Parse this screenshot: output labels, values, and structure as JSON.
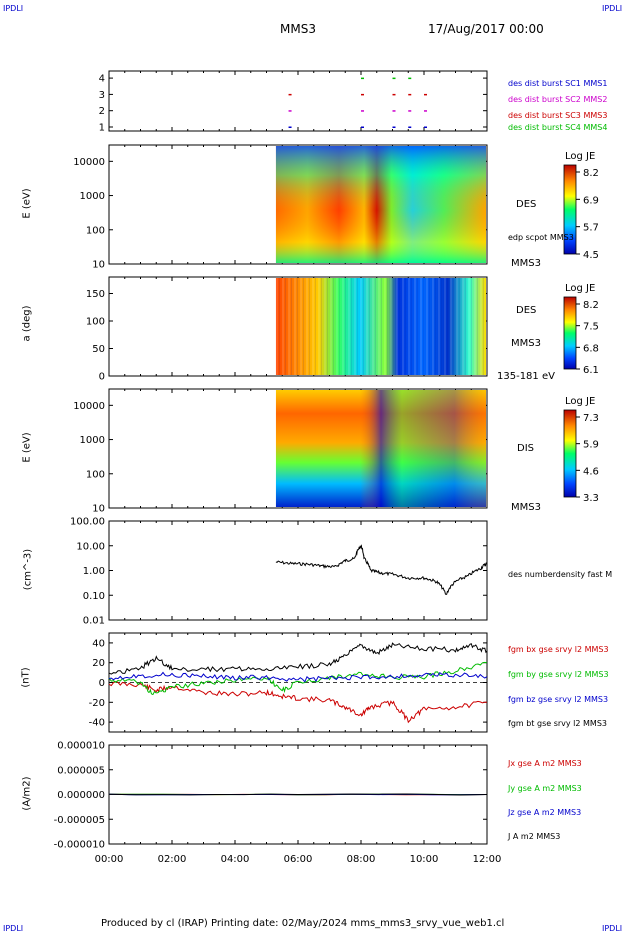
{
  "corners": {
    "tl": "IPDLI",
    "tr": "IPDLI",
    "bl": "IPDLI",
    "br": "IPDLI"
  },
  "header": {
    "spacecraft": "MMS3",
    "date": "17/Aug/2017 00:00"
  },
  "footer": "Produced by cl (IRAP)   Printing date: 02/May/2024   mms_mms3_srvy_vue_web1.cl",
  "x_ticks": [
    "00:00",
    "02:00",
    "04:00",
    "06:00",
    "08:00",
    "10:00",
    "12:00"
  ],
  "colors": {
    "mms1": "#0000cc",
    "mms2": "#cc00cc",
    "mms3": "#cc0000",
    "mms4": "#00bb00"
  },
  "chart_data": [
    {
      "type": "scatter",
      "id": "burst",
      "yticks": [
        "4",
        "3",
        "2",
        "1"
      ],
      "legend": [
        "des dist burst SC1 MMS1",
        "des dist burst SC2 MMS2",
        "des dist burst SC3 MMS3",
        "des dist burst SC4 MMS4"
      ],
      "series": [
        {
          "name": "des dist burst SC1 MMS1",
          "y": 1,
          "x": [
            5.7,
            8.0,
            9.0,
            9.5,
            10.0
          ]
        },
        {
          "name": "des dist burst SC2 MMS2",
          "y": 2,
          "x": [
            5.7,
            8.0,
            9.0,
            9.5,
            10.0
          ]
        },
        {
          "name": "des dist burst SC3 MMS3",
          "y": 3,
          "x": [
            5.7,
            8.0,
            9.0,
            9.5,
            10.0
          ]
        },
        {
          "name": "des dist burst SC4 MMS4",
          "y": 4,
          "x": [
            8.0,
            9.0,
            9.5
          ]
        }
      ],
      "xlim": [
        0,
        12
      ]
    },
    {
      "type": "heatmap",
      "id": "des-energy",
      "ylabel": "E (eV)",
      "yticks": [
        "10000",
        "1000",
        "100",
        "10"
      ],
      "label": "DES",
      "sublabel": "MMS3",
      "overlay": "edp scpot MMS3",
      "colorbar": {
        "title": "Log JE",
        "ticks": [
          "8.2",
          "6.9",
          "5.7",
          "4.5"
        ]
      },
      "xlim": [
        0,
        12
      ],
      "data_start": 5.3
    },
    {
      "type": "heatmap",
      "id": "des-pitch",
      "ylabel": "a (deg)",
      "yticks": [
        "150",
        "100",
        "50",
        "0"
      ],
      "label": "DES",
      "sublabel": "MMS3",
      "energy": "135-181 eV",
      "colorbar": {
        "title": "Log JE",
        "ticks": [
          "8.2",
          "7.5",
          "6.8",
          "6.1"
        ]
      },
      "xlim": [
        0,
        12
      ],
      "data_start": 5.3
    },
    {
      "type": "heatmap",
      "id": "dis-energy",
      "ylabel": "E (eV)",
      "yticks": [
        "10000",
        "1000",
        "100",
        "10"
      ],
      "label": "DIS",
      "sublabel": "MMS3",
      "colorbar": {
        "title": "Log JE",
        "ticks": [
          "7.3",
          "5.9",
          "4.6",
          "3.3"
        ]
      },
      "xlim": [
        0,
        12
      ],
      "data_start": 5.3
    },
    {
      "type": "line",
      "id": "density",
      "ylabel": "(cm^-3)",
      "yticks": [
        "100.00",
        "10.00",
        "1.00",
        "0.10",
        "0.01"
      ],
      "scale": "log",
      "ylim": [
        0.01,
        100
      ],
      "xlim": [
        0,
        12
      ],
      "series": [
        {
          "name": "des numberdensity fast M",
          "x": [
            5.3,
            5.8,
            6.3,
            6.8,
            7.2,
            7.5,
            7.8,
            8.0,
            8.1,
            8.3,
            8.6,
            9.0,
            9.5,
            10.0,
            10.4,
            10.7,
            11.0,
            11.4,
            11.8,
            12.0
          ],
          "y": [
            2.2,
            1.9,
            1.8,
            1.5,
            1.4,
            2.5,
            3.0,
            10.0,
            3.0,
            1.0,
            0.8,
            0.7,
            0.5,
            0.5,
            0.35,
            0.1,
            0.35,
            0.6,
            1.2,
            2.0
          ]
        }
      ]
    },
    {
      "type": "line",
      "id": "fgm",
      "ylabel": "(nT)",
      "yticks": [
        "40",
        "20",
        "0",
        "-20",
        "-40"
      ],
      "ylim": [
        -50,
        50
      ],
      "xlim": [
        0,
        12
      ],
      "series": [
        {
          "name": "fgm bx gse srvy l2 MMS3",
          "color": "#cc0000",
          "x": [
            0,
            1,
            1.5,
            2,
            3,
            4,
            5,
            5.5,
            6,
            7,
            7.5,
            8,
            8.3,
            9,
            9.5,
            10,
            11,
            12
          ],
          "y": [
            -1,
            -2,
            -8,
            -4,
            -10,
            -12,
            -10,
            -14,
            -16,
            -18,
            -25,
            -33,
            -25,
            -20,
            -38,
            -27,
            -25,
            -20
          ]
        },
        {
          "name": "fgm by gse srvy l2 MMS3",
          "color": "#00bb00",
          "x": [
            0,
            1,
            1.4,
            2,
            3,
            4,
            5,
            5.5,
            6,
            7,
            8,
            9,
            10,
            11,
            12
          ],
          "y": [
            3,
            0,
            -12,
            -5,
            0,
            2,
            5,
            -8,
            0,
            5,
            8,
            5,
            6,
            12,
            20
          ]
        },
        {
          "name": "fgm bz gse srvy l2 MMS3",
          "color": "#0000cc",
          "x": [
            0,
            1,
            2,
            3,
            4,
            5,
            6,
            7,
            8,
            9,
            10,
            11,
            12
          ],
          "y": [
            5,
            7,
            8,
            6,
            5,
            5,
            3,
            4,
            5,
            6,
            7,
            8,
            6
          ]
        },
        {
          "name": "fgm bt gse srvy l2 MMS3",
          "color": "#000000",
          "x": [
            0,
            1,
            1.5,
            2,
            3,
            4,
            5,
            6,
            7,
            7.5,
            8,
            8.5,
            9,
            10,
            11,
            11.5,
            12
          ],
          "y": [
            8,
            15,
            24,
            14,
            13,
            14,
            13,
            16,
            18,
            27,
            38,
            30,
            38,
            34,
            33,
            37,
            32
          ]
        }
      ]
    },
    {
      "type": "line",
      "id": "current",
      "ylabel": "(A/m2)",
      "yticks": [
        "0.000010",
        "0.000005",
        "0.000000",
        "-0.000005",
        "-0.000010"
      ],
      "ylim": [
        -1e-05,
        1e-05
      ],
      "xlim": [
        0,
        12
      ],
      "series": [
        {
          "name": "Jx gse A m2 MMS3",
          "color": "#cc0000",
          "x": [
            0,
            12
          ],
          "y": [
            0,
            0
          ]
        },
        {
          "name": "Jy gse A m2 MMS3",
          "color": "#00bb00",
          "x": [
            0,
            12
          ],
          "y": [
            0,
            0
          ]
        },
        {
          "name": "Jz gse A m2 MMS3",
          "color": "#0000cc",
          "x": [
            0,
            12
          ],
          "y": [
            0,
            0
          ]
        },
        {
          "name": "J A m2 MMS3",
          "color": "#000000",
          "x": [
            0,
            12
          ],
          "y": [
            0,
            0
          ]
        }
      ]
    }
  ]
}
